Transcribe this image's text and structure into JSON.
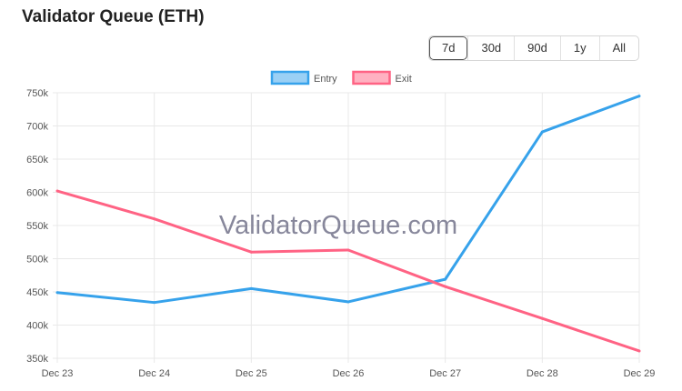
{
  "title": "Validator Queue (ETH)",
  "ranges": [
    {
      "label": "7d",
      "active": true
    },
    {
      "label": "30d",
      "active": false
    },
    {
      "label": "90d",
      "active": false
    },
    {
      "label": "1y",
      "active": false
    },
    {
      "label": "All",
      "active": false
    }
  ],
  "watermark": "ValidatorQueue.com",
  "chart_data": {
    "type": "line",
    "categories": [
      "Dec 23",
      "Dec 24",
      "Dec 25",
      "Dec 26",
      "Dec 27",
      "Dec 28",
      "Dec 29"
    ],
    "yticks": [
      "350k",
      "400k",
      "450k",
      "500k",
      "550k",
      "600k",
      "650k",
      "700k",
      "750k"
    ],
    "ylim": [
      350000,
      750000
    ],
    "grid": true,
    "legend": "top",
    "series": [
      {
        "name": "Entry",
        "color": "#36a2eb",
        "values": [
          449000,
          434000,
          455000,
          435000,
          469000,
          691000,
          745000
        ]
      },
      {
        "name": "Exit",
        "color": "#ff6384",
        "values": [
          602000,
          560000,
          510000,
          513000,
          458000,
          410000,
          361000
        ]
      }
    ]
  }
}
